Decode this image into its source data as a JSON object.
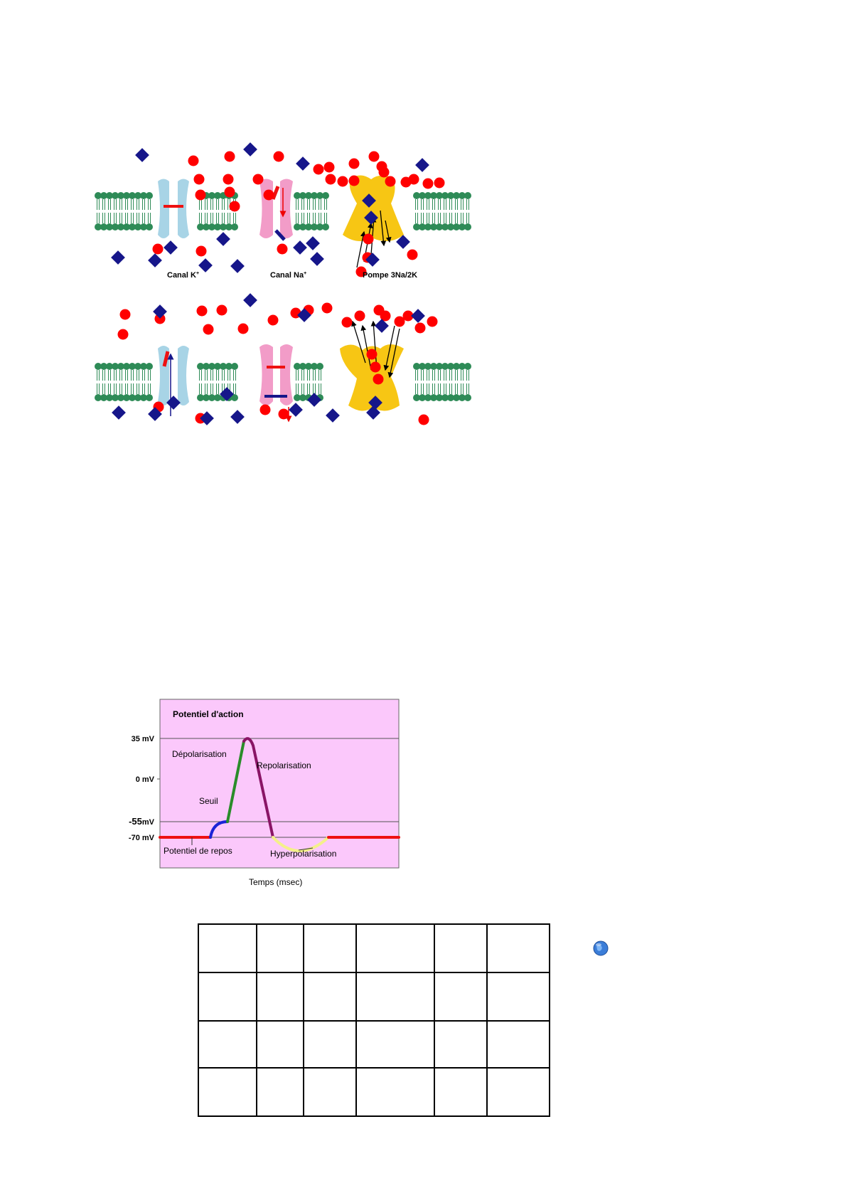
{
  "membrane_diagram": {
    "labels": {
      "k_channel": "Canal K",
      "k_sup": "+",
      "na_channel": "Canal Na",
      "na_sup": "+",
      "pump": "Pompe 3Na/2K"
    },
    "colors": {
      "sodium_ion": "#ff0000",
      "potassium_ion": "#16168a",
      "lipid_bilayer": "#2e8b57",
      "k_channel": "#a8d4e6",
      "na_channel": "#f29cc8",
      "pump": "#f7c614"
    }
  },
  "chart_data": {
    "type": "line",
    "title": "Potentiel d'action",
    "xlabel": "Temps (msec)",
    "ylabel": "",
    "y_ticks": [
      {
        "label": "35 mV",
        "value": 35
      },
      {
        "label": "0 mV",
        "value": 0
      },
      {
        "label": "-55",
        "unit": "mV",
        "value": -55
      },
      {
        "label": "-70 mV",
        "value": -70
      }
    ],
    "phases": [
      {
        "name": "Potentiel de repos",
        "color": "#ee1111"
      },
      {
        "name": "Seuil",
        "color": "#1a24d6"
      },
      {
        "name": "Dépolarisation",
        "color": "#2a8c2a"
      },
      {
        "name": "Repolarisation",
        "color": "#8a1566"
      },
      {
        "name": "Hyperpolarisation",
        "color": "#f4f08a"
      }
    ],
    "plot_background": "#fbc8fb"
  },
  "table": {
    "rows": 4,
    "columns": 6,
    "cells": [
      [
        "",
        "",
        "",
        "",
        "",
        ""
      ],
      [
        "",
        "",
        "",
        "",
        "",
        ""
      ],
      [
        "",
        "",
        "",
        "",
        "",
        ""
      ],
      [
        "",
        "",
        "",
        "",
        "",
        ""
      ]
    ]
  },
  "icons": [
    "globe-icon"
  ]
}
